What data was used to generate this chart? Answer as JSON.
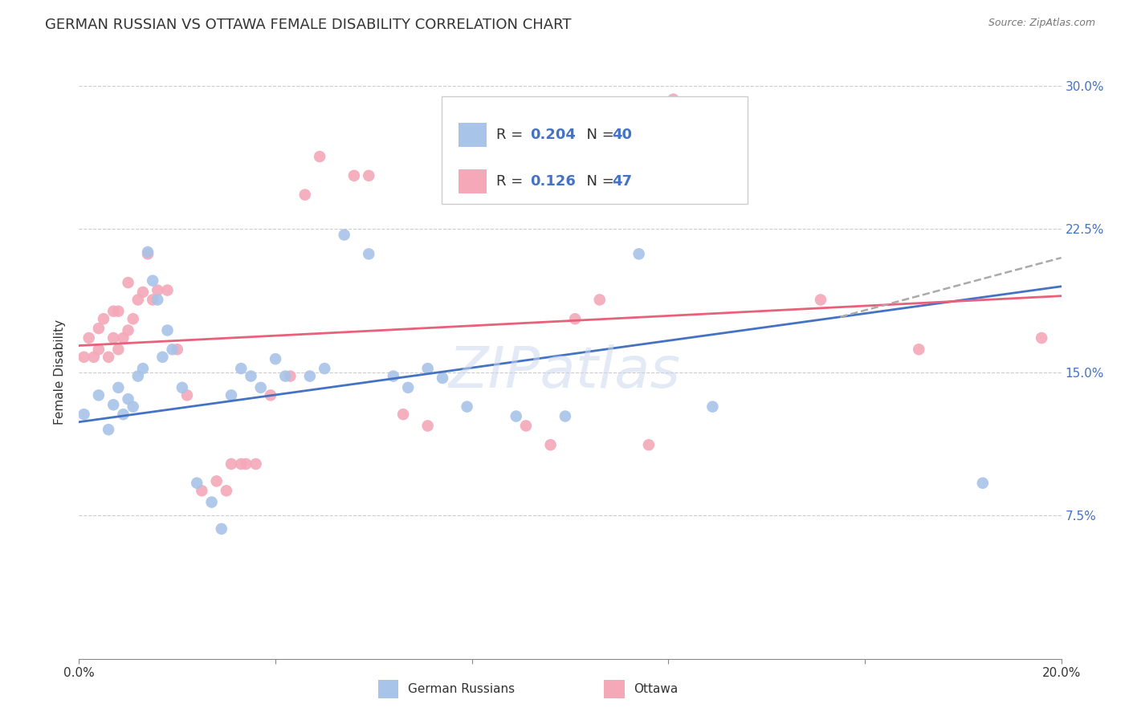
{
  "title": "GERMAN RUSSIAN VS OTTAWA FEMALE DISABILITY CORRELATION CHART",
  "source": "Source: ZipAtlas.com",
  "xlabel_blue": "German Russians",
  "xlabel_pink": "Ottawa",
  "ylabel": "Female Disability",
  "xmin": 0.0,
  "xmax": 0.2,
  "ymin": 0.0,
  "ymax": 0.3,
  "yticks": [
    0.075,
    0.15,
    0.225,
    0.3
  ],
  "ytick_labels": [
    "7.5%",
    "15.0%",
    "22.5%",
    "30.0%"
  ],
  "xticks": [
    0.0,
    0.04,
    0.08,
    0.12,
    0.16,
    0.2
  ],
  "xtick_labels": [
    "0.0%",
    "",
    "",
    "",
    "",
    "20.0%"
  ],
  "legend_R_blue": "R = 0.204",
  "legend_N_blue": "N = 40",
  "legend_R_pink": "R =  0.126",
  "legend_N_pink": "N = 47",
  "blue_color": "#a8c4e8",
  "pink_color": "#f4a8b8",
  "blue_line_color": "#4472c4",
  "pink_line_color": "#e8607a",
  "dashed_line_color": "#aaaaaa",
  "blue_scatter": [
    [
      0.001,
      0.128
    ],
    [
      0.004,
      0.138
    ],
    [
      0.006,
      0.12
    ],
    [
      0.007,
      0.133
    ],
    [
      0.008,
      0.142
    ],
    [
      0.009,
      0.128
    ],
    [
      0.01,
      0.136
    ],
    [
      0.011,
      0.132
    ],
    [
      0.012,
      0.148
    ],
    [
      0.013,
      0.152
    ],
    [
      0.014,
      0.213
    ],
    [
      0.015,
      0.198
    ],
    [
      0.016,
      0.188
    ],
    [
      0.017,
      0.158
    ],
    [
      0.018,
      0.172
    ],
    [
      0.019,
      0.162
    ],
    [
      0.021,
      0.142
    ],
    [
      0.024,
      0.092
    ],
    [
      0.027,
      0.082
    ],
    [
      0.029,
      0.068
    ],
    [
      0.031,
      0.138
    ],
    [
      0.033,
      0.152
    ],
    [
      0.035,
      0.148
    ],
    [
      0.037,
      0.142
    ],
    [
      0.04,
      0.157
    ],
    [
      0.042,
      0.148
    ],
    [
      0.047,
      0.148
    ],
    [
      0.05,
      0.152
    ],
    [
      0.054,
      0.222
    ],
    [
      0.059,
      0.212
    ],
    [
      0.064,
      0.148
    ],
    [
      0.067,
      0.142
    ],
    [
      0.071,
      0.152
    ],
    [
      0.074,
      0.147
    ],
    [
      0.079,
      0.132
    ],
    [
      0.089,
      0.127
    ],
    [
      0.099,
      0.127
    ],
    [
      0.114,
      0.212
    ],
    [
      0.129,
      0.132
    ],
    [
      0.184,
      0.092
    ]
  ],
  "pink_scatter": [
    [
      0.001,
      0.158
    ],
    [
      0.002,
      0.168
    ],
    [
      0.003,
      0.158
    ],
    [
      0.004,
      0.173
    ],
    [
      0.004,
      0.162
    ],
    [
      0.005,
      0.178
    ],
    [
      0.006,
      0.158
    ],
    [
      0.007,
      0.168
    ],
    [
      0.007,
      0.182
    ],
    [
      0.008,
      0.162
    ],
    [
      0.008,
      0.182
    ],
    [
      0.009,
      0.168
    ],
    [
      0.01,
      0.172
    ],
    [
      0.01,
      0.197
    ],
    [
      0.011,
      0.178
    ],
    [
      0.012,
      0.188
    ],
    [
      0.013,
      0.192
    ],
    [
      0.014,
      0.212
    ],
    [
      0.015,
      0.188
    ],
    [
      0.016,
      0.193
    ],
    [
      0.018,
      0.193
    ],
    [
      0.02,
      0.162
    ],
    [
      0.022,
      0.138
    ],
    [
      0.025,
      0.088
    ],
    [
      0.028,
      0.093
    ],
    [
      0.03,
      0.088
    ],
    [
      0.031,
      0.102
    ],
    [
      0.033,
      0.102
    ],
    [
      0.034,
      0.102
    ],
    [
      0.036,
      0.102
    ],
    [
      0.039,
      0.138
    ],
    [
      0.043,
      0.148
    ],
    [
      0.046,
      0.243
    ],
    [
      0.049,
      0.263
    ],
    [
      0.056,
      0.253
    ],
    [
      0.059,
      0.253
    ],
    [
      0.066,
      0.128
    ],
    [
      0.071,
      0.122
    ],
    [
      0.091,
      0.122
    ],
    [
      0.096,
      0.112
    ],
    [
      0.101,
      0.178
    ],
    [
      0.106,
      0.188
    ],
    [
      0.116,
      0.112
    ],
    [
      0.121,
      0.293
    ],
    [
      0.151,
      0.188
    ],
    [
      0.171,
      0.162
    ],
    [
      0.196,
      0.168
    ]
  ],
  "background_color": "#ffffff",
  "grid_color": "#cccccc",
  "title_fontsize": 13,
  "axis_label_fontsize": 11,
  "tick_fontsize": 11,
  "legend_fontsize": 13,
  "watermark_text": "ZIPatlas"
}
